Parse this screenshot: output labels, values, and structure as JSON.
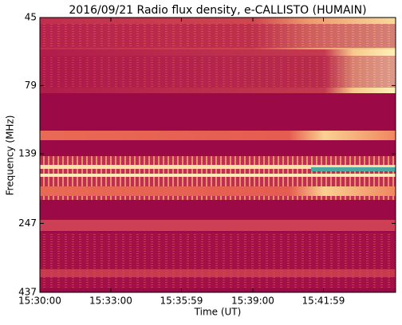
{
  "chart_data": {
    "type": "spectrogram",
    "title": "2016/09/21  Radio flux density, e-CALLISTO (HUMAIN)",
    "xlabel": "Time (UT)",
    "ylabel": "Frequency (MHz)",
    "xlim": [
      "15:30:00",
      "15:45:02"
    ],
    "xticks": [
      "15:30:00",
      "15:33:00",
      "15:35:59",
      "15:39:00",
      "15:41:59"
    ],
    "ylim": [
      437,
      45
    ],
    "yticks": [
      45,
      79,
      139,
      247,
      437
    ],
    "yscale": "log"
  }
}
